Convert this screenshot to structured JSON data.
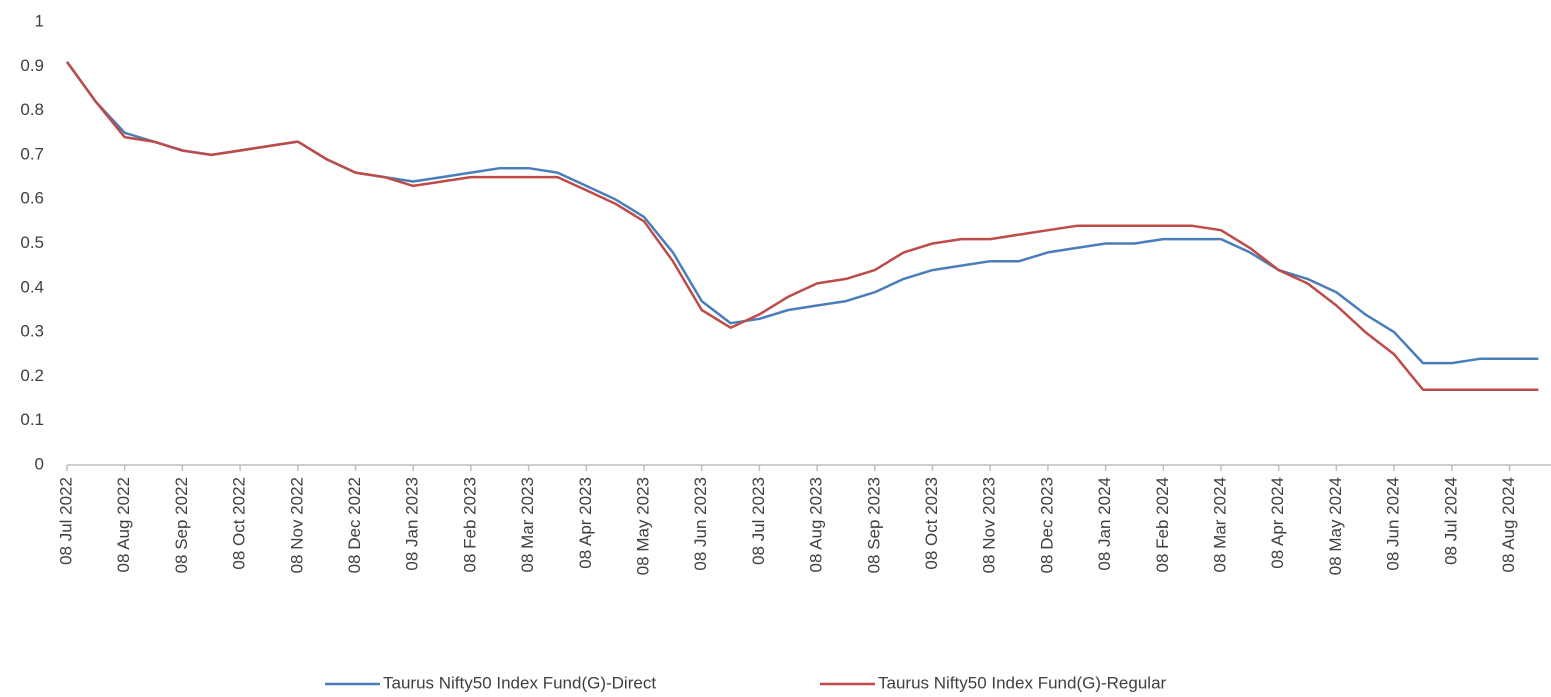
{
  "chart_data": {
    "type": "line",
    "categories": [
      "08 Jul 2022",
      null,
      "08 Aug 2022",
      null,
      "08 Sep 2022",
      null,
      "08 Oct 2022",
      null,
      "08 Nov 2022",
      null,
      "08 Dec 2022",
      null,
      "08 Jan 2023",
      null,
      "08 Feb 2023",
      null,
      "08 Mar 2023",
      null,
      "08 Apr 2023",
      null,
      "08 May 2023",
      null,
      "08 Jun 2023",
      null,
      "08 Jul 2023",
      null,
      "08 Aug 2023",
      null,
      "08 Sep 2023",
      null,
      "08 Oct 2023",
      null,
      "08 Nov 2023",
      null,
      "08 Dec 2023",
      null,
      "08 Jan 2024",
      null,
      "08 Feb 2024",
      null,
      "08 Mar 2024",
      null,
      "08 Apr 2024",
      null,
      "08 May 2024",
      null,
      "08 Jun 2024",
      null,
      "08 Jul 2024",
      null,
      "08 Aug 2024",
      null
    ],
    "series": [
      {
        "name": "Taurus Nifty50 Index Fund(G)-Direct",
        "color": "#4a7ebb",
        "values": [
          0.91,
          0.82,
          0.75,
          0.73,
          0.71,
          0.7,
          0.71,
          0.72,
          0.73,
          0.69,
          0.66,
          0.65,
          0.64,
          0.65,
          0.66,
          0.67,
          0.67,
          0.66,
          0.63,
          0.6,
          0.56,
          0.48,
          0.37,
          0.32,
          0.33,
          0.35,
          0.36,
          0.37,
          0.39,
          0.42,
          0.44,
          0.45,
          0.46,
          0.46,
          0.48,
          0.49,
          0.5,
          0.5,
          0.51,
          0.51,
          0.51,
          0.48,
          0.44,
          0.42,
          0.39,
          0.34,
          0.3,
          0.23,
          0.23,
          0.24,
          0.24,
          0.24
        ]
      },
      {
        "name": "Taurus Nifty50 Index Fund(G)-Regular",
        "color": "#be4b48",
        "values": [
          0.91,
          0.82,
          0.74,
          0.73,
          0.71,
          0.7,
          0.71,
          0.72,
          0.73,
          0.69,
          0.66,
          0.65,
          0.63,
          0.64,
          0.65,
          0.65,
          0.65,
          0.65,
          0.62,
          0.59,
          0.55,
          0.46,
          0.35,
          0.31,
          0.34,
          0.38,
          0.41,
          0.42,
          0.44,
          0.48,
          0.5,
          0.51,
          0.51,
          0.52,
          0.53,
          0.54,
          0.54,
          0.54,
          0.54,
          0.54,
          0.53,
          0.49,
          0.44,
          0.41,
          0.36,
          0.3,
          0.25,
          0.17,
          0.17,
          0.17,
          0.17,
          0.17
        ]
      }
    ],
    "ylim": [
      0,
      1
    ],
    "yticks": [
      0,
      0.1,
      0.2,
      0.3,
      0.4,
      0.5,
      0.6,
      0.7,
      0.8,
      0.9,
      1
    ],
    "grid": false,
    "legend": "bottom"
  }
}
